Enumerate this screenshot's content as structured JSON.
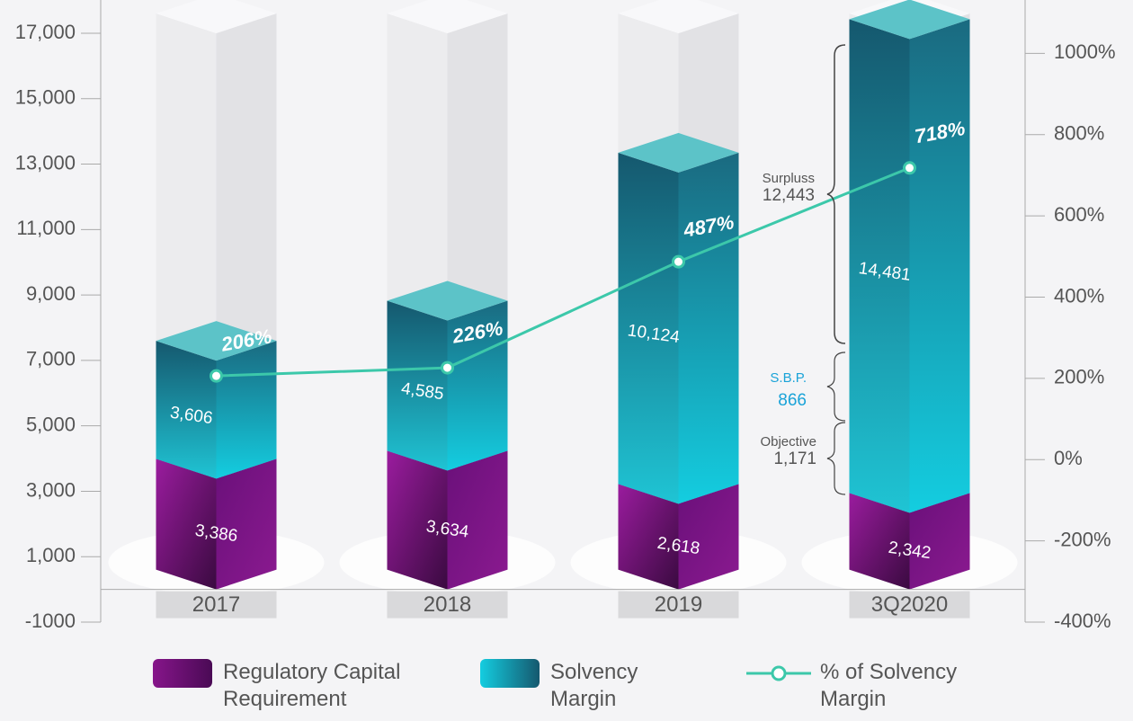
{
  "chart_data": {
    "type": "bar",
    "stacked": true,
    "categories": [
      "2017",
      "2018",
      "2019",
      "3Q2020"
    ],
    "series": [
      {
        "name": "Regulatory Capital Requirement",
        "color": "#86158a",
        "values": [
          3386,
          3634,
          2618,
          2342
        ],
        "value_labels": [
          "3,386",
          "3,634",
          "2,618",
          "2,342"
        ]
      },
      {
        "name": "Solvency Margin",
        "color": "#1fb3c6",
        "values": [
          3606,
          4585,
          10124,
          14481
        ],
        "value_labels": [
          "3,606",
          "4,585",
          "10,124",
          "14,481"
        ]
      },
      {
        "name": "% of Solvency Margin",
        "type": "line",
        "axis": "y2",
        "color": "#3cc8aa",
        "values": [
          206,
          226,
          487,
          718
        ],
        "value_labels": [
          "206%",
          "226%",
          "487%",
          "718%"
        ]
      }
    ],
    "ylim": [
      -1000,
      18000
    ],
    "yticks": [
      -1000,
      {
        "value": 1000,
        "label": "1,000"
      },
      {
        "value": 3000,
        "label": "3,000"
      },
      {
        "value": 5000,
        "label": "5,000"
      },
      {
        "value": 7000,
        "label": "7,000"
      },
      {
        "value": 9000,
        "label": "9,000"
      },
      {
        "value": 11000,
        "label": "11,000"
      },
      {
        "value": 13000,
        "label": "13,000"
      },
      {
        "value": 15000,
        "label": "15,000"
      },
      {
        "value": 17000,
        "label": "17,000"
      }
    ],
    "y2lim": [
      -400,
      1130
    ],
    "y2ticks": [
      {
        "value": -400,
        "label": "-400%"
      },
      {
        "value": -200,
        "label": "-200%"
      },
      {
        "value": 0,
        "label": "0%"
      },
      {
        "value": 200,
        "label": "200%"
      },
      {
        "value": 400,
        "label": "400%"
      },
      {
        "value": 600,
        "label": "600%"
      },
      {
        "value": 800,
        "label": "800%"
      },
      {
        "value": 1000,
        "label": "1000%"
      }
    ],
    "annotations": [
      {
        "title": "Surpluss",
        "text": "12,443"
      },
      {
        "title": "S.B.P.",
        "text": "866"
      },
      {
        "title": "Objective",
        "text": "1,171"
      }
    ]
  }
}
